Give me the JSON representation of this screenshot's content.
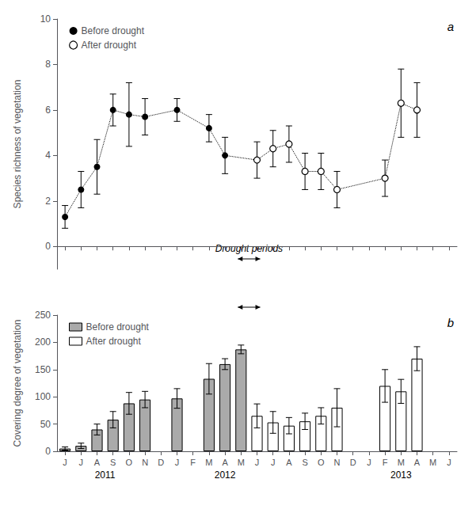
{
  "chart_data": [
    {
      "type": "scatter",
      "categories": [
        null,
        null,
        null,
        null,
        null,
        null,
        null,
        null,
        null,
        null,
        null,
        null,
        null,
        null,
        null,
        null,
        null,
        null,
        null,
        null,
        null,
        null,
        null,
        null,
        null
      ],
      "tick_labels": "y",
      "ylabel": "Species richness of vegetation",
      "ylim": [
        -1,
        10
      ],
      "yticks": [
        0,
        2,
        4,
        6,
        8,
        10
      ],
      "grid": false,
      "legend": "upper left",
      "line_style": "dotted",
      "series": [
        {
          "name": "Before drought",
          "color": "#000000",
          "marker": "circle",
          "values": [
            1.3,
            2.5,
            3.5,
            6.0,
            5.8,
            5.7,
            null,
            6.0,
            null,
            5.2,
            4.0,
            null,
            null,
            null,
            null,
            null,
            null,
            null,
            null,
            null,
            null,
            null,
            null,
            null,
            null
          ],
          "yerr_lo": [
            0.5,
            0.8,
            1.2,
            0.7,
            1.4,
            0.8,
            null,
            0.5,
            null,
            0.6,
            0.8,
            null,
            null,
            null,
            null,
            null,
            null,
            null,
            null,
            null,
            null,
            null,
            null,
            null,
            null
          ],
          "yerr_hi": [
            0.5,
            0.8,
            1.2,
            0.7,
            1.4,
            0.8,
            null,
            0.5,
            null,
            0.6,
            0.8,
            null,
            null,
            null,
            null,
            null,
            null,
            null,
            null,
            null,
            null,
            null,
            null,
            null,
            null
          ]
        },
        {
          "name": "After drought",
          "color": "#000000",
          "marker": "open circle",
          "values": [
            null,
            null,
            null,
            null,
            null,
            null,
            null,
            null,
            null,
            null,
            null,
            null,
            3.8,
            4.3,
            4.5,
            3.3,
            3.3,
            2.5,
            null,
            null,
            3.0,
            6.3,
            6.0,
            null,
            null
          ],
          "yerr_lo": [
            null,
            null,
            null,
            null,
            null,
            null,
            null,
            null,
            null,
            null,
            null,
            null,
            0.8,
            0.8,
            0.8,
            0.8,
            0.8,
            0.8,
            null,
            null,
            0.8,
            1.5,
            1.2,
            null,
            null
          ],
          "yerr_hi": [
            null,
            null,
            null,
            null,
            null,
            null,
            null,
            null,
            null,
            null,
            null,
            null,
            0.8,
            0.8,
            0.8,
            0.8,
            0.8,
            0.8,
            null,
            null,
            0.8,
            1.5,
            1.2,
            null,
            null
          ]
        }
      ],
      "annotations": [
        {
          "text": "a"
        },
        {
          "text": "Drought periods",
          "x": 11.5,
          "arrow": [
            10.8,
            12.2
          ]
        }
      ]
    },
    {
      "type": "bar",
      "categories": [
        "J",
        "J",
        "A",
        "S",
        "O",
        "N",
        "D",
        "J",
        "F",
        "M",
        "A",
        "M",
        "J",
        "J",
        "A",
        "S",
        "O",
        "N",
        "D",
        "J",
        "F",
        "M",
        "A",
        "M",
        "J"
      ],
      "ylabel": "Covering degree of vegetation",
      "ylim": [
        0,
        250
      ],
      "yticks": [
        0,
        50,
        100,
        150,
        200,
        250
      ],
      "grid": false,
      "legend": "upper left",
      "series": [
        {
          "name": "Before drought",
          "color": "#aaaaaa",
          "values": [
            5,
            10,
            40,
            58,
            88,
            95,
            null,
            97,
            null,
            133,
            160,
            187,
            null,
            null,
            null,
            null,
            null,
            null,
            null,
            null,
            null,
            null,
            null,
            null,
            null
          ],
          "yerr": [
            3,
            5,
            10,
            15,
            20,
            15,
            null,
            18,
            null,
            28,
            10,
            8,
            null,
            null,
            null,
            null,
            null,
            null,
            null,
            null,
            null,
            null,
            null,
            null,
            null
          ]
        },
        {
          "name": "After drought",
          "color": "#ffffff",
          "values": [
            null,
            null,
            null,
            null,
            null,
            null,
            null,
            null,
            null,
            null,
            null,
            null,
            65,
            53,
            47,
            55,
            65,
            80,
            null,
            null,
            120,
            110,
            170,
            null,
            null
          ],
          "yerr": [
            null,
            null,
            null,
            null,
            null,
            null,
            null,
            null,
            null,
            null,
            null,
            null,
            22,
            20,
            15,
            15,
            15,
            35,
            null,
            null,
            30,
            22,
            22,
            null,
            null
          ]
        }
      ],
      "annotations": [
        {
          "text": "b"
        },
        {
          "text": "2011",
          "x": 2.5
        },
        {
          "text": "2012",
          "x": 10.0
        },
        {
          "text": "2013",
          "x": 21.0
        },
        {
          "arrow": [
            10.8,
            12.2
          ]
        }
      ]
    }
  ]
}
